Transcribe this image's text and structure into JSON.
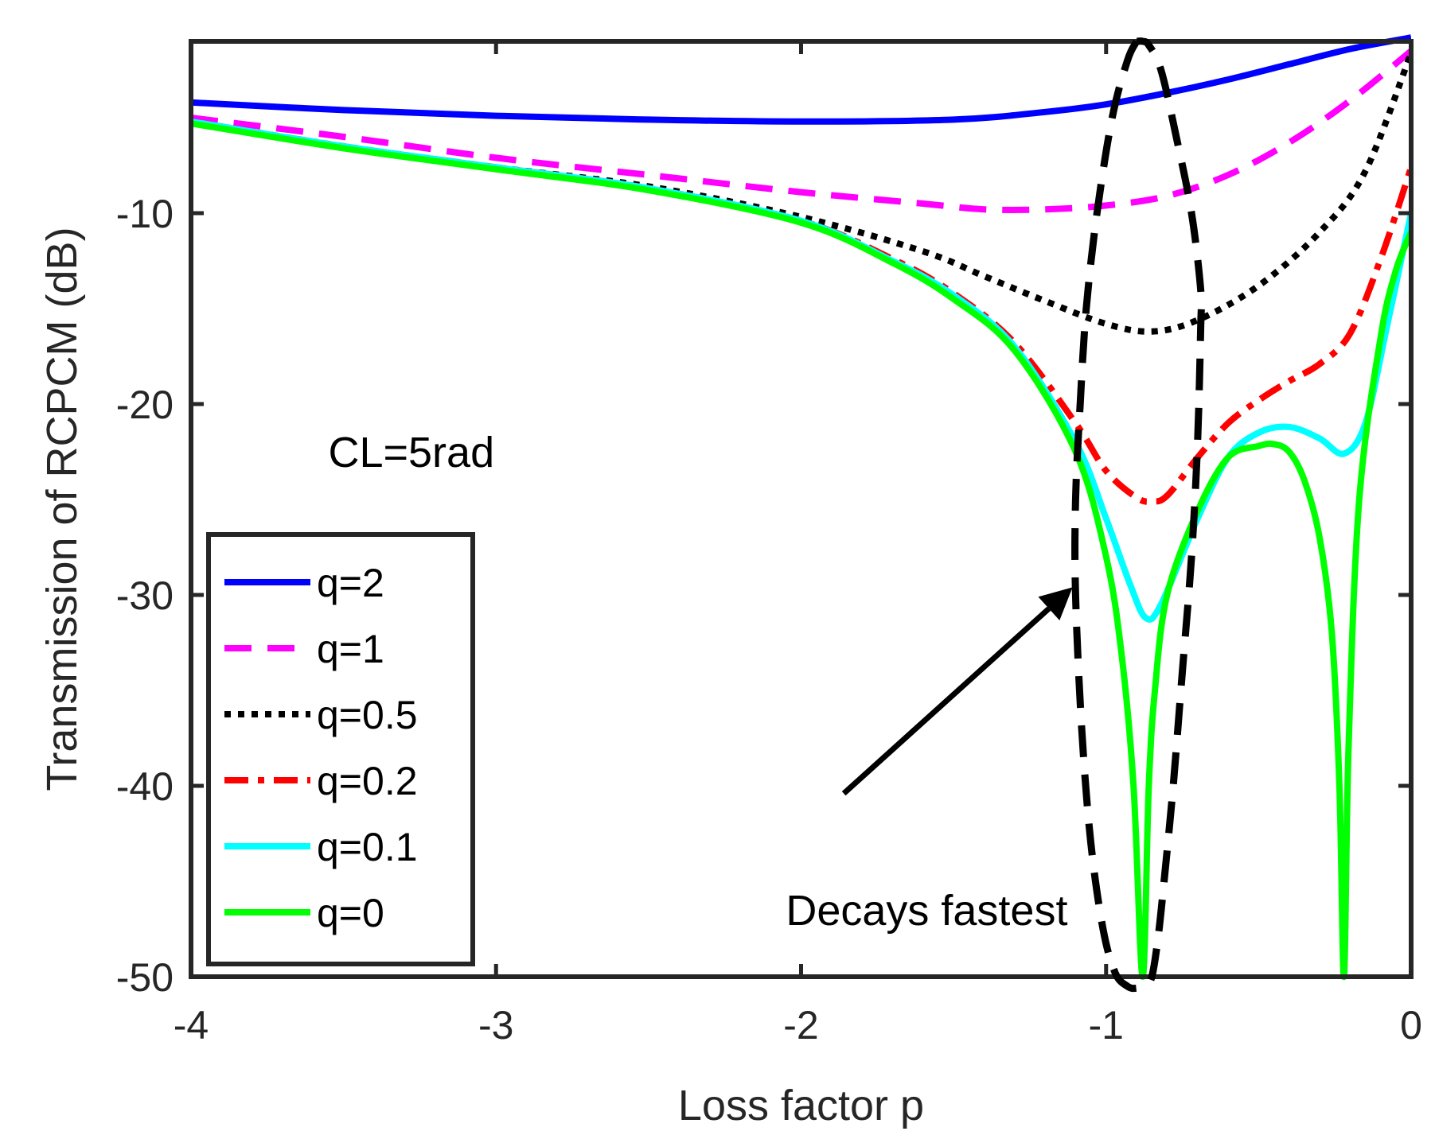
{
  "chart_data": {
    "type": "line",
    "title": "",
    "xlabel": "Loss factor p",
    "ylabel": "Transmission of RCPCM (dB)",
    "xlim": [
      -4,
      0
    ],
    "ylim": [
      -50,
      -1
    ],
    "xticks": [
      -4,
      -3,
      -2,
      -1,
      0
    ],
    "xtick_labels": [
      "-4",
      "-3",
      "-2",
      "-1",
      "0"
    ],
    "yticks": [
      -50,
      -40,
      -30,
      -20,
      -10
    ],
    "ytick_labels": [
      "-50",
      "-40",
      "-30",
      "-20",
      "-10"
    ],
    "grid": false,
    "legend_position": "bottom-left",
    "series": [
      {
        "name": "q=2",
        "color": "#0000FF",
        "style": "solid",
        "x": [
          -4,
          -3.5,
          -3,
          -2.5,
          -2,
          -1.5,
          -1.2,
          -1,
          -0.8,
          -0.6,
          -0.4,
          -0.2,
          0
        ],
        "y": [
          -4.2,
          -4.6,
          -4.9,
          -5.1,
          -5.2,
          -5.1,
          -4.7,
          -4.3,
          -3.7,
          -3.0,
          -2.2,
          -1.4,
          -0.8
        ]
      },
      {
        "name": "q=1",
        "color": "#FF00FF",
        "style": "dashed",
        "x": [
          -4,
          -3.5,
          -3,
          -2.5,
          -2,
          -1.6,
          -1.4,
          -1.2,
          -1.0,
          -0.8,
          -0.6,
          -0.4,
          -0.2,
          0
        ],
        "y": [
          -5.0,
          -6.0,
          -7.1,
          -8.0,
          -8.9,
          -9.5,
          -9.8,
          -9.8,
          -9.6,
          -9.1,
          -8.0,
          -6.3,
          -4.1,
          -1.5
        ]
      },
      {
        "name": "q=0.5",
        "color": "#000000",
        "style": "dotted",
        "x": [
          -4,
          -3.5,
          -3,
          -2.5,
          -2,
          -1.6,
          -1.4,
          -1.2,
          -1.0,
          -0.85,
          -0.7,
          -0.5,
          -0.3,
          -0.15,
          0
        ],
        "y": [
          -5.2,
          -6.5,
          -7.6,
          -8.6,
          -10.2,
          -12.0,
          -13.3,
          -14.6,
          -15.8,
          -16.2,
          -15.6,
          -13.8,
          -11.0,
          -7.8,
          -1.6
        ]
      },
      {
        "name": "q=0.2",
        "color": "#FF0000",
        "style": "dashdot",
        "x": [
          -4,
          -3.5,
          -3,
          -2.5,
          -2,
          -1.7,
          -1.5,
          -1.3,
          -1.1,
          -1.0,
          -0.9,
          -0.85,
          -0.8,
          -0.7,
          -0.6,
          -0.5,
          -0.4,
          -0.3,
          -0.2,
          -0.1,
          0
        ],
        "y": [
          -5.2,
          -6.5,
          -7.6,
          -8.7,
          -10.4,
          -12.4,
          -14.2,
          -16.8,
          -21.0,
          -23.5,
          -24.9,
          -25.1,
          -24.8,
          -22.8,
          -21.0,
          -19.8,
          -18.8,
          -17.9,
          -16.3,
          -12.4,
          -7.6
        ]
      },
      {
        "name": "q=0.1",
        "color": "#00FFFF",
        "style": "solid",
        "x": [
          -4,
          -3.5,
          -3,
          -2.5,
          -2,
          -1.7,
          -1.5,
          -1.3,
          -1.1,
          -1.0,
          -0.92,
          -0.87,
          -0.82,
          -0.7,
          -0.6,
          -0.5,
          -0.4,
          -0.3,
          -0.22,
          -0.15,
          -0.08,
          0
        ],
        "y": [
          -5.2,
          -6.5,
          -7.6,
          -8.7,
          -10.4,
          -12.5,
          -14.3,
          -17.0,
          -22.0,
          -26.0,
          -29.5,
          -31.2,
          -30.5,
          -26.0,
          -22.8,
          -21.5,
          -21.2,
          -21.8,
          -22.6,
          -21.0,
          -16.0,
          -10.0
        ]
      },
      {
        "name": "q=0",
        "color": "#00FF00",
        "style": "solid",
        "x": [
          -4,
          -3.5,
          -3,
          -2.5,
          -2,
          -1.7,
          -1.5,
          -1.3,
          -1.1,
          -1.0,
          -0.95,
          -0.91,
          -0.88,
          -0.86,
          -0.84,
          -0.8,
          -0.7,
          -0.6,
          -0.5,
          -0.45,
          -0.4,
          -0.35,
          -0.3,
          -0.26,
          -0.235,
          -0.22,
          -0.205,
          -0.17,
          -0.1,
          -0.05,
          0
        ],
        "y": [
          -5.3,
          -6.6,
          -7.7,
          -8.8,
          -10.5,
          -12.6,
          -14.5,
          -17.2,
          -22.5,
          -28.0,
          -33.0,
          -40.0,
          -50.0,
          -40.0,
          -35.0,
          -30.0,
          -25.6,
          -22.8,
          -22.2,
          -22.1,
          -22.5,
          -24.0,
          -27.0,
          -32.0,
          -40.0,
          -50.0,
          -38.0,
          -25.0,
          -16.5,
          -13.0,
          -11.0
        ]
      }
    ],
    "marker_curve": {
      "name": "Decays fastest boundary",
      "color": "#000000",
      "style": "dashed",
      "x": [
        -0.9,
        -0.93,
        -0.98,
        -1.03,
        -1.065,
        -1.085,
        -1.1,
        -1.1,
        -1.08,
        -1.05,
        -1.01,
        -0.97,
        -0.93,
        -0.9,
        -0.87,
        -0.85,
        -0.83,
        -0.81,
        -0.78,
        -0.75,
        -0.72,
        -0.7,
        -0.69,
        -0.69,
        -0.72,
        -0.77,
        -0.82,
        -0.86,
        -0.88,
        -0.9
      ],
      "y": [
        -1.0,
        -2.0,
        -5.0,
        -10.0,
        -15.0,
        -20.0,
        -25.0,
        -30.0,
        -37.0,
        -43.0,
        -47.5,
        -49.8,
        -50.5,
        -50.6,
        -50.4,
        -50.0,
        -48.0,
        -45.0,
        -40.0,
        -34.0,
        -28.0,
        -22.0,
        -16.0,
        -14.0,
        -10.0,
        -6.0,
        -2.5,
        -1.2,
        -1.0,
        -1.0
      ]
    },
    "annotations": [
      {
        "text": "CL=5rad",
        "x": -3.55,
        "y": -23.3
      },
      {
        "text": "Decays fastest",
        "x": -2.05,
        "y": -47.3,
        "arrow_to": [
          -1.11,
          -29.6
        ],
        "arrow_from": [
          -1.86,
          -40.4
        ]
      }
    ]
  }
}
